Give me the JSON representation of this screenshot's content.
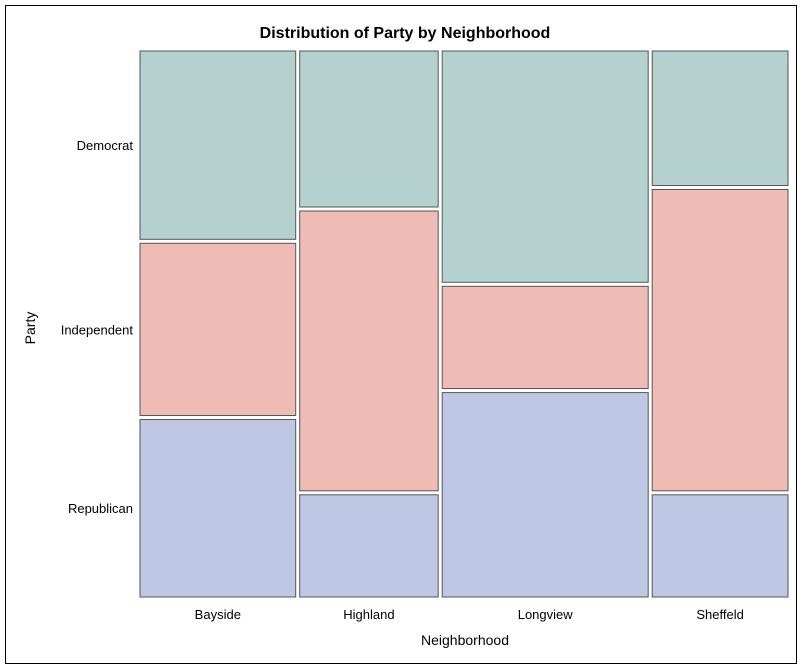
{
  "chart_data": {
    "type": "mosaic",
    "title": "Distribution of Party by Neighborhood",
    "xlabel": "Neighborhood",
    "ylabel": "Party",
    "categories": [
      "Bayside",
      "Highland",
      "Longview",
      "Sheffeld"
    ],
    "column_widths": [
      0.235,
      0.209,
      0.311,
      0.205
    ],
    "y_axis_labels": [
      "Democrat",
      "Independent",
      "Republican"
    ],
    "series": [
      {
        "name": "Democrat",
        "color": "#b4d1d0",
        "values": [
          0.35,
          0.29,
          0.43,
          0.25
        ]
      },
      {
        "name": "Independent",
        "color": "#eebbb5",
        "values": [
          0.32,
          0.52,
          0.19,
          0.56
        ]
      },
      {
        "name": "Republican",
        "color": "#bec7e4",
        "values": [
          0.33,
          0.19,
          0.38,
          0.19
        ]
      }
    ]
  }
}
